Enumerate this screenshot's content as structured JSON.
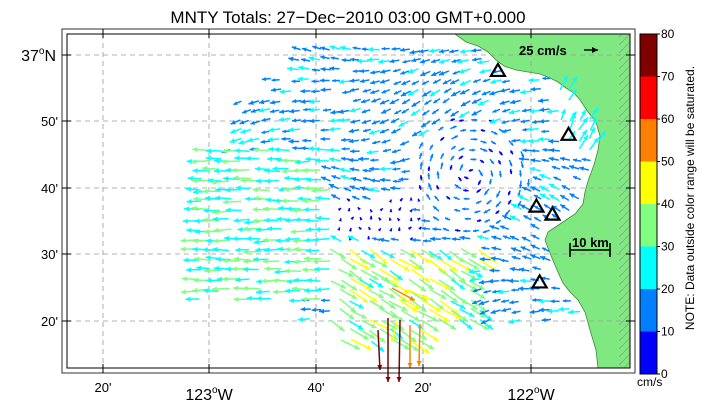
{
  "title": "MNTY Totals: 27−Dec−2010 03:00 GMT+0.000",
  "lat_labels": [
    {
      "text": "37°N",
      "main": "37",
      "sup": "o",
      "suffix": "N",
      "lat": 37.0
    },
    {
      "text": "50'",
      "lat": 36.8333
    },
    {
      "text": "40'",
      "lat": 36.6667
    },
    {
      "text": "30'",
      "lat": 36.5
    },
    {
      "text": "20'",
      "lat": 36.3333
    }
  ],
  "lon_labels": [
    {
      "text": "20'",
      "lon": -123.3333
    },
    {
      "text": "123°W",
      "main": "123",
      "sup": "o",
      "suffix": "W",
      "lon": -123.0
    },
    {
      "text": "40'",
      "lon": -122.6667
    },
    {
      "text": "20'",
      "lon": -122.3333
    },
    {
      "text": "122°W",
      "main": "122",
      "sup": "o",
      "suffix": "W",
      "lon": -122.0
    }
  ],
  "scale_vector_label": "25 cm/s",
  "scale_bar_label": "10 km",
  "colorbar": {
    "ticks": [
      "0",
      "10",
      "20",
      "30",
      "40",
      "50",
      "60",
      "70",
      "80"
    ],
    "unit": "cm/s",
    "note": "NOTE: Data outside color range will be saturated.",
    "colors": [
      "#0000ff",
      "#0080ff",
      "#00ffff",
      "#80ff80",
      "#ffff00",
      "#ff8000",
      "#ff0000",
      "#800000"
    ]
  },
  "stations": [
    {
      "name": "station-1",
      "lon": -122.1,
      "lat": 36.96
    },
    {
      "name": "station-2",
      "lon": -121.88,
      "lat": 36.8
    },
    {
      "name": "station-3",
      "lon": -121.98,
      "lat": 36.62
    },
    {
      "name": "station-4",
      "lon": -121.93,
      "lat": 36.6
    },
    {
      "name": "station-5",
      "lon": -121.97,
      "lat": 36.43
    }
  ],
  "colors": {
    "land": "#80e880",
    "grid": "#9a9a9a",
    "frame": "#000000"
  }
}
